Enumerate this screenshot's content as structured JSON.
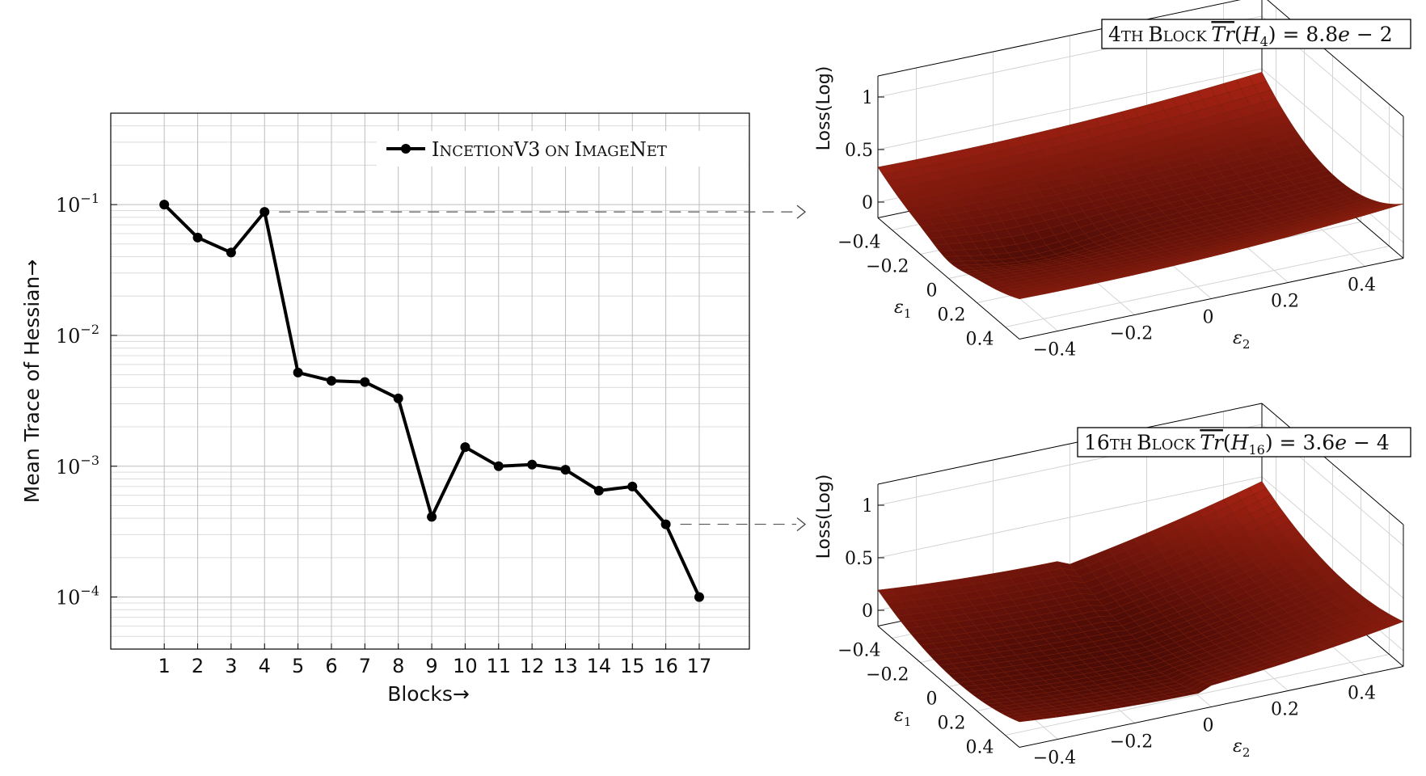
{
  "chart_data": [
    {
      "type": "line",
      "x": [
        1,
        2,
        3,
        4,
        5,
        6,
        7,
        8,
        9,
        10,
        11,
        12,
        13,
        14,
        15,
        16,
        17
      ],
      "series": [
        {
          "name": "IncetionV3 on ImageNet",
          "values": [
            0.1,
            0.056,
            0.043,
            0.088,
            0.0052,
            0.0045,
            0.0044,
            0.0033,
            0.00041,
            0.0014,
            0.001,
            0.00103,
            0.00094,
            0.00065,
            0.0007,
            0.00036,
            0.0001
          ]
        }
      ],
      "xlabel": "Blocks→",
      "ylabel": "Mean Trace of Hessian→",
      "y_scale": "log",
      "ylim": [
        4e-05,
        0.5
      ],
      "xlim": [
        -0.6,
        18.5
      ],
      "grid": true,
      "legend": "top-right",
      "x_tick_labels": [
        "1",
        "2",
        "3",
        "4",
        "5",
        "6",
        "7",
        "8",
        "9",
        "10",
        "11",
        "12",
        "13",
        "14",
        "15",
        "16",
        "17"
      ],
      "y_tick_labels": [
        {
          "base": "10",
          "exp": "−1",
          "value": 0.1
        },
        {
          "base": "10",
          "exp": "−2",
          "value": 0.01
        },
        {
          "base": "10",
          "exp": "−3",
          "value": 0.001
        },
        {
          "base": "10",
          "exp": "−4",
          "value": 0.0001
        }
      ],
      "legend_parts": [
        {
          "text": "I",
          "big": true
        },
        {
          "text": "NCETION",
          "big": false
        },
        {
          "text": "V3",
          "big": true
        },
        {
          "text": " ON ",
          "big": false
        },
        {
          "text": "I",
          "big": true
        },
        {
          "text": "MAGE",
          "big": false
        },
        {
          "text": "N",
          "big": true
        },
        {
          "text": "ET",
          "big": false
        }
      ]
    },
    {
      "type": "surface",
      "title_parts": [
        {
          "t": "4",
          "cls": "big"
        },
        {
          "t": "TH ",
          "cls": "sc"
        },
        {
          "t": "B",
          "cls": "big"
        },
        {
          "t": "LOCK ",
          "cls": "sc"
        },
        {
          "t": "Tr",
          "cls": "ital-over"
        },
        {
          "t": "(",
          "cls": "plain"
        },
        {
          "t": "H",
          "cls": "ital"
        },
        {
          "t": "4",
          "cls": "sub"
        },
        {
          "t": ") = 8.8",
          "cls": "plain"
        },
        {
          "t": "e",
          "cls": "ital"
        },
        {
          "t": " − 2",
          "cls": "plain"
        }
      ],
      "zlabel": "Loss(Log)",
      "xlabel": "ε",
      "xlabel_sub": "1",
      "ylabel": "ε",
      "ylabel_sub": "2",
      "z_ticks": [
        "0",
        "0.5",
        "1"
      ],
      "eps1_ticks": [
        "−0.4",
        "−0.2",
        "0",
        "0.2",
        "0.4"
      ],
      "eps2_ticks": [
        "−0.4",
        "−0.2",
        "0",
        "0.2",
        "0.4"
      ],
      "color": "#c4321a",
      "trace_value": 0.088
    },
    {
      "type": "surface",
      "title_parts": [
        {
          "t": "16",
          "cls": "big"
        },
        {
          "t": "TH ",
          "cls": "sc"
        },
        {
          "t": "B",
          "cls": "big"
        },
        {
          "t": "LOCK ",
          "cls": "sc"
        },
        {
          "t": "Tr",
          "cls": "ital-over"
        },
        {
          "t": "(",
          "cls": "plain"
        },
        {
          "t": "H",
          "cls": "ital"
        },
        {
          "t": "16",
          "cls": "sub"
        },
        {
          "t": ") = 3.6",
          "cls": "plain"
        },
        {
          "t": "e",
          "cls": "ital"
        },
        {
          "t": " − 4",
          "cls": "plain"
        }
      ],
      "zlabel": "Loss(Log)",
      "xlabel": "ε",
      "xlabel_sub": "1",
      "ylabel": "ε",
      "ylabel_sub": "2",
      "z_ticks": [
        "0",
        "0.5",
        "1"
      ],
      "eps1_ticks": [
        "−0.4",
        "−0.2",
        "0",
        "0.2",
        "0.4"
      ],
      "eps2_ticks": [
        "−0.4",
        "−0.2",
        "0",
        "0.2",
        "0.4"
      ],
      "color": "#c4321a",
      "trace_value": 0.00036
    }
  ]
}
